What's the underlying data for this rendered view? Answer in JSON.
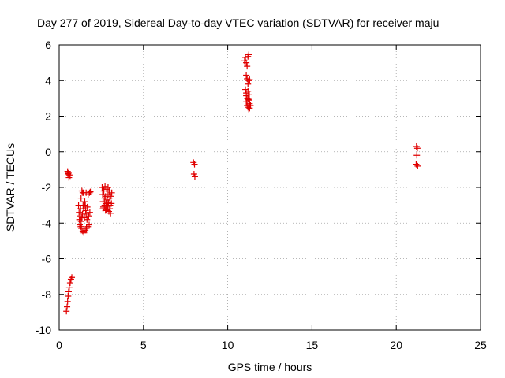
{
  "chart_data": {
    "type": "scatter",
    "title": "Day 277 of 2019, Sidereal Day-to-day VTEC variation (SDTVAR) for receiver maju",
    "xlabel": "GPS time / hours",
    "ylabel": "SDTVAR / TECUs",
    "xlim": [
      0,
      25
    ],
    "ylim": [
      -10,
      6
    ],
    "xticks": [
      0,
      5,
      10,
      15,
      20,
      25
    ],
    "yticks": [
      -10,
      -8,
      -6,
      -4,
      -2,
      0,
      2,
      4,
      6
    ],
    "xtick_labels": [
      "0",
      "5",
      "10",
      "15",
      "20",
      "25"
    ],
    "ytick_labels": [
      "-10",
      "-8",
      "-6",
      "-4",
      "-2",
      "0",
      "2",
      "4",
      "6"
    ],
    "grid": true,
    "marker": "plus",
    "marker_color": "#e00000",
    "series": [
      {
        "name": "SDTVAR",
        "points": [
          [
            0.43,
            -8.95
          ],
          [
            0.47,
            -8.7
          ],
          [
            0.5,
            -8.4
          ],
          [
            0.53,
            -8.1
          ],
          [
            0.56,
            -7.85
          ],
          [
            0.6,
            -7.6
          ],
          [
            0.65,
            -7.35
          ],
          [
            0.7,
            -7.15
          ],
          [
            0.75,
            -7.05
          ],
          [
            0.5,
            -1.1
          ],
          [
            0.55,
            -1.2
          ],
          [
            0.6,
            -1.3
          ],
          [
            0.65,
            -1.35
          ],
          [
            0.58,
            -1.45
          ],
          [
            0.52,
            -1.25
          ],
          [
            1.15,
            -3.0
          ],
          [
            1.18,
            -3.4
          ],
          [
            1.2,
            -3.8
          ],
          [
            1.22,
            -4.1
          ],
          [
            1.25,
            -3.6
          ],
          [
            1.27,
            -3.2
          ],
          [
            1.3,
            -2.6
          ],
          [
            1.3,
            -3.9
          ],
          [
            1.32,
            -4.3
          ],
          [
            1.35,
            -2.2
          ],
          [
            1.38,
            -3.5
          ],
          [
            1.4,
            -4.45
          ],
          [
            1.42,
            -3.0
          ],
          [
            1.45,
            -2.3
          ],
          [
            1.47,
            -4.55
          ],
          [
            1.5,
            -3.7
          ],
          [
            1.52,
            -2.8
          ],
          [
            1.55,
            -4.4
          ],
          [
            1.57,
            -3.3
          ],
          [
            1.6,
            -2.3
          ],
          [
            1.62,
            -4.3
          ],
          [
            1.65,
            -3.8
          ],
          [
            1.67,
            -3.1
          ],
          [
            1.7,
            -4.2
          ],
          [
            1.72,
            -2.4
          ],
          [
            1.75,
            -3.6
          ],
          [
            1.78,
            -4.1
          ],
          [
            1.8,
            -2.3
          ],
          [
            1.82,
            -3.4
          ],
          [
            1.85,
            -2.25
          ],
          [
            1.45,
            -3.2
          ],
          [
            1.35,
            -3.7
          ],
          [
            1.55,
            -3.0
          ],
          [
            1.6,
            -3.5
          ],
          [
            1.28,
            -4.2
          ],
          [
            1.4,
            -2.3
          ],
          [
            2.55,
            -2.0
          ],
          [
            2.58,
            -2.4
          ],
          [
            2.6,
            -2.8
          ],
          [
            2.62,
            -3.1
          ],
          [
            2.65,
            -2.2
          ],
          [
            2.68,
            -2.6
          ],
          [
            2.7,
            -3.0
          ],
          [
            2.72,
            -1.95
          ],
          [
            2.75,
            -2.5
          ],
          [
            2.78,
            -2.9
          ],
          [
            2.8,
            -3.25
          ],
          [
            2.82,
            -2.1
          ],
          [
            2.85,
            -2.7
          ],
          [
            2.88,
            -3.1
          ],
          [
            2.9,
            -2.4
          ],
          [
            2.92,
            -2.85
          ],
          [
            2.95,
            -3.35
          ],
          [
            2.98,
            -2.2
          ],
          [
            3.0,
            -2.6
          ],
          [
            3.02,
            -3.0
          ],
          [
            3.05,
            -3.45
          ],
          [
            3.08,
            -2.5
          ],
          [
            3.1,
            -2.9
          ],
          [
            3.12,
            -2.3
          ],
          [
            2.6,
            -3.2
          ],
          [
            2.75,
            -3.3
          ],
          [
            2.9,
            -2.0
          ],
          [
            3.0,
            -3.2
          ],
          [
            7.97,
            -0.6
          ],
          [
            8.03,
            -0.7
          ],
          [
            8.0,
            -1.25
          ],
          [
            8.05,
            -1.4
          ],
          [
            11.0,
            5.1
          ],
          [
            11.05,
            5.3
          ],
          [
            11.1,
            5.0
          ],
          [
            11.15,
            4.8
          ],
          [
            11.2,
            5.35
          ],
          [
            11.25,
            5.45
          ],
          [
            11.1,
            4.3
          ],
          [
            11.15,
            4.1
          ],
          [
            11.2,
            3.8
          ],
          [
            11.25,
            4.0
          ],
          [
            11.3,
            4.05
          ],
          [
            11.05,
            3.5
          ],
          [
            11.1,
            3.3
          ],
          [
            11.15,
            3.0
          ],
          [
            11.2,
            3.4
          ],
          [
            11.25,
            2.9
          ],
          [
            11.3,
            2.7
          ],
          [
            11.1,
            2.8
          ],
          [
            11.15,
            2.6
          ],
          [
            11.2,
            2.5
          ],
          [
            11.25,
            2.4
          ],
          [
            11.3,
            2.45
          ],
          [
            11.35,
            2.6
          ],
          [
            11.1,
            3.15
          ],
          [
            11.22,
            2.95
          ],
          [
            11.28,
            3.2
          ],
          [
            21.2,
            0.3
          ],
          [
            21.25,
            0.2
          ],
          [
            21.22,
            -0.2
          ],
          [
            21.18,
            -0.7
          ],
          [
            21.27,
            -0.8
          ]
        ]
      }
    ]
  }
}
